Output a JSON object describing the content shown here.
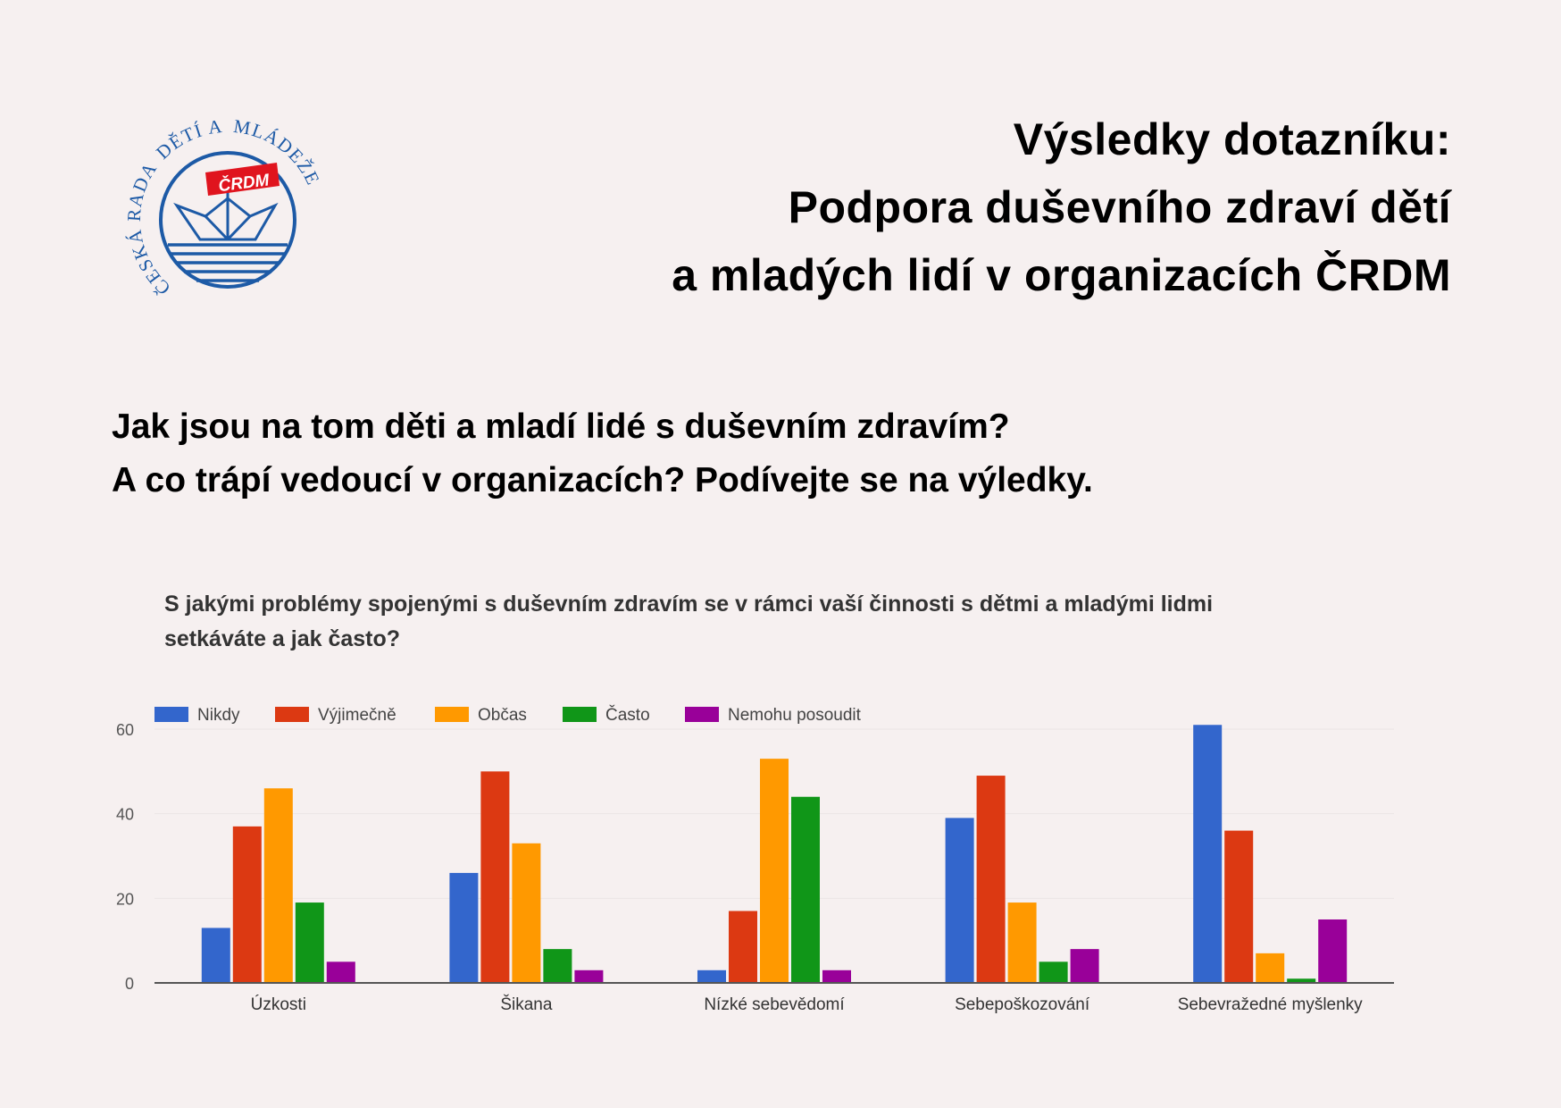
{
  "logo": {
    "text_arc_top": "ČESKÁ RADA",
    "text_arc_right": "DĚTÍ A",
    "text_arc_bottom": "MLÁDEŽE",
    "flag": "ČRDM",
    "color": "#1d5aa6",
    "flag_color": "#e0141e"
  },
  "header": {
    "title_lines": [
      "Výsledky dotazníku:",
      "Podpora duševního zdraví dětí",
      "a mladých lidí v organizacích ČRDM"
    ]
  },
  "intro": {
    "lines": [
      "Jak jsou na tom děti a mladí lidé s duševním zdravím?",
      "A co trápí vedoucí v organizacích? Podívejte se na výledky."
    ]
  },
  "chart_data": {
    "type": "bar",
    "title_lines": [
      "S jakými problémy spojenými s duševním zdravím se v rámci vaší činnosti s dětmi a mladými lidmi",
      "setkáváte a jak často?"
    ],
    "categories": [
      "Úzkosti",
      "Šikana",
      "Nízké sebevědomí",
      "Sebepoškozování",
      "Sebevražedné myšlenky"
    ],
    "series": [
      {
        "name": "Nikdy",
        "color": "#3366cc",
        "values": [
          13,
          26,
          3,
          39,
          61
        ]
      },
      {
        "name": "Výjimečně",
        "color": "#dc3912",
        "values": [
          37,
          50,
          17,
          49,
          36
        ]
      },
      {
        "name": "Občas",
        "color": "#ff9900",
        "values": [
          46,
          33,
          53,
          19,
          7
        ]
      },
      {
        "name": "Často",
        "color": "#109618",
        "values": [
          19,
          8,
          44,
          5,
          1
        ]
      },
      {
        "name": "Nemohu posoudit",
        "color": "#990099",
        "values": [
          5,
          3,
          3,
          8,
          15
        ]
      }
    ],
    "yticks": [
      "0",
      "20",
      "40",
      "60"
    ],
    "ylim": [
      0,
      60
    ],
    "grid": true,
    "legend": "top-left",
    "xlabel": "",
    "ylabel": ""
  }
}
